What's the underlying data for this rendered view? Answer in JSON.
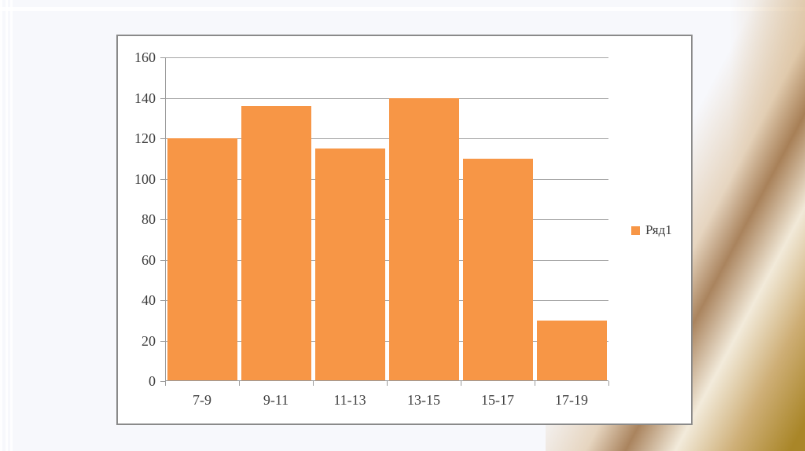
{
  "background": {
    "slide_color": "#f7f8fc",
    "chart_frame_color": "#ffffff",
    "decoration_swirl_colors": [
      "#d8b88e",
      "#9c6f42",
      "#f2ead9",
      "#a98628"
    ]
  },
  "chart_data": {
    "type": "bar",
    "title": "",
    "categories": [
      "7-9",
      "9-11",
      "11-13",
      "13-15",
      "15-17",
      "17-19"
    ],
    "series": [
      {
        "name": "Ряд1",
        "values": [
          120,
          136,
          115,
          140,
          110,
          30
        ]
      }
    ],
    "ylim": [
      0,
      160
    ],
    "yticks": [
      0,
      20,
      40,
      60,
      80,
      100,
      120,
      140,
      160
    ],
    "grid": true,
    "legend_position": "right",
    "bar_color": "#f79646",
    "gridline_color": "#a6a6a6",
    "axis_color": "#9b9b9b",
    "label_color": "#3f3f3f"
  },
  "legend": {
    "label": "Ряд1",
    "swatch_color": "#f79646"
  }
}
